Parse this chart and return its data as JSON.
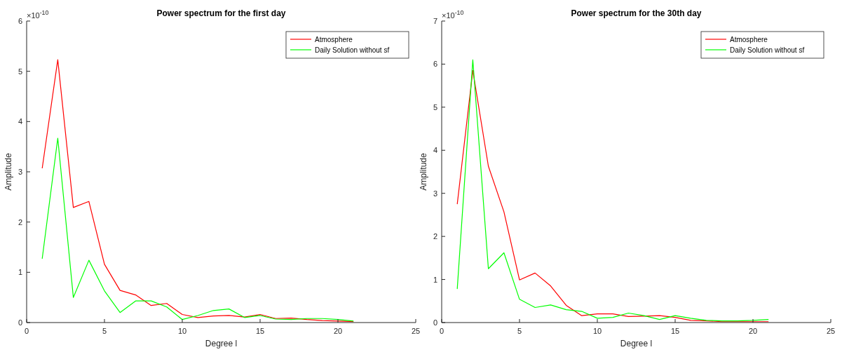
{
  "chart_data": [
    {
      "type": "line",
      "title": "Power spectrum for the first day",
      "xlabel": "Degree l",
      "ylabel": "Amplitude",
      "annotations": [
        "×10$^{-10}$"
      ],
      "x": [
        1,
        2,
        3,
        4,
        5,
        6,
        7,
        8,
        9,
        10,
        11,
        12,
        13,
        14,
        15,
        16,
        17,
        18,
        19,
        20,
        21
      ],
      "xlim": [
        0,
        25
      ],
      "xticks": [
        0,
        5,
        10,
        15,
        20,
        25
      ],
      "ylim": [
        0,
        6
      ],
      "yticks": [
        0,
        1,
        2,
        3,
        4,
        5,
        6
      ],
      "legend": "top right",
      "series": [
        {
          "name": "Atmosphere",
          "color": "#ff0000",
          "values": [
            3.07,
            5.23,
            2.29,
            2.41,
            1.16,
            0.64,
            0.55,
            0.34,
            0.38,
            0.16,
            0.1,
            0.13,
            0.14,
            0.11,
            0.16,
            0.08,
            0.09,
            0.06,
            0.04,
            0.03,
            0.02
          ]
        },
        {
          "name": "Daily Solution without sf",
          "color": "#00ff00",
          "values": [
            1.27,
            3.67,
            0.5,
            1.24,
            0.63,
            0.2,
            0.43,
            0.43,
            0.31,
            0.06,
            0.14,
            0.24,
            0.27,
            0.1,
            0.14,
            0.07,
            0.06,
            0.08,
            0.08,
            0.06,
            0.03
          ]
        }
      ]
    },
    {
      "type": "line",
      "title": "Power spectrum for the 30th day",
      "xlabel": "Degree l",
      "ylabel": "Amplitude",
      "annotations": [
        "×10$^{-10}$"
      ],
      "x": [
        1,
        2,
        3,
        4,
        5,
        6,
        7,
        8,
        9,
        10,
        11,
        12,
        13,
        14,
        15,
        16,
        17,
        18,
        19,
        20,
        21
      ],
      "xlim": [
        0,
        25
      ],
      "xticks": [
        0,
        5,
        10,
        15,
        20,
        25
      ],
      "ylim": [
        0,
        7
      ],
      "yticks": [
        0,
        1,
        2,
        3,
        4,
        5,
        6,
        7
      ],
      "legend": "top right",
      "series": [
        {
          "name": "Atmosphere",
          "color": "#ff0000",
          "values": [
            2.75,
            5.85,
            3.63,
            2.57,
            0.99,
            1.15,
            0.85,
            0.4,
            0.16,
            0.2,
            0.2,
            0.14,
            0.15,
            0.16,
            0.12,
            0.05,
            0.04,
            0.02,
            0.02,
            0.02,
            0.02
          ]
        },
        {
          "name": "Daily Solution without sf",
          "color": "#00ff00",
          "values": [
            0.78,
            6.1,
            1.25,
            1.62,
            0.54,
            0.35,
            0.41,
            0.3,
            0.26,
            0.1,
            0.12,
            0.22,
            0.16,
            0.07,
            0.16,
            0.1,
            0.05,
            0.04,
            0.04,
            0.05,
            0.07
          ]
        }
      ]
    }
  ]
}
